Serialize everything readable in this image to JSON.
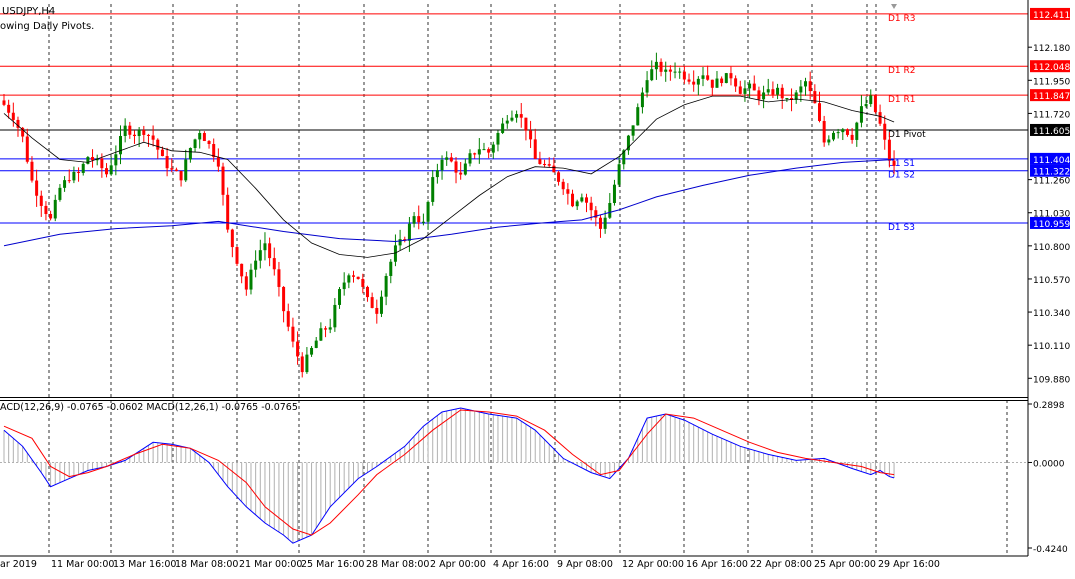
{
  "window": {
    "title": "USDJPY,H4",
    "indicator_note": "owing Daily Pivots."
  },
  "colors": {
    "background": "#ffffff",
    "bull": "#008000",
    "bear": "#ff0000",
    "ma_long": "#0000cc",
    "ma_short": "#000000",
    "macd": "#0000ff",
    "signal": "#ff0000",
    "histogram": "#b0b0b0",
    "resistance": "#ff0000",
    "support": "#0000ff",
    "pivot": "#000000",
    "price_box_red": "#ff0000",
    "price_box_blue": "#0000ff",
    "price_box_black": "#000000"
  },
  "pivots": [
    {
      "label": "D1 R3",
      "value": 112.411,
      "box": "112.411",
      "kind": "resistance"
    },
    {
      "label": "D1 R2",
      "value": 112.048,
      "box": "112.048",
      "kind": "resistance"
    },
    {
      "label": "D1 R1",
      "value": 111.847,
      "box": "111.847",
      "kind": "resistance"
    },
    {
      "label": "D1 Pivot",
      "value": 111.605,
      "box": "111.605",
      "kind": "pivot"
    },
    {
      "label": "D1 S1",
      "value": 111.404,
      "box": "111.404",
      "kind": "support"
    },
    {
      "label": "D1 S2",
      "value": 111.322,
      "box": "111.322",
      "kind": "support"
    },
    {
      "label": "D1 S3",
      "value": 110.959,
      "box": "110.959",
      "kind": "support"
    }
  ],
  "price_axis_ticks": [
    "112.180",
    "111.950",
    "111.720",
    "111.260",
    "111.030",
    "110.800",
    "110.570",
    "110.340",
    "110.110",
    "109.880"
  ],
  "macd": {
    "label": "ACD(12,26,9) -0.0765 -0.0602 MACD(12,26,1) -0.0765 -0.0765",
    "ticks": [
      "0.2898",
      "0.0000",
      "-0.4240"
    ]
  },
  "time_axis": [
    "ar 2019",
    "11 Mar 00:00",
    "13 Mar 16:00",
    "18 Mar 08:00",
    "21 Mar 00:00",
    "25 Mar 16:00",
    "28 Mar 08:00",
    "2 Apr 00:00",
    "4 Apr 16:00",
    "9 Apr 08:00",
    "12 Apr 00:00",
    "16 Apr 16:00",
    "22 Apr 08:00",
    "25 Apr 00:00",
    "29 Apr 16:00"
  ],
  "chart_data": {
    "type": "candlestick",
    "symbol": "USDJPY",
    "timeframe": "H4",
    "ylim": [
      109.75,
      112.48
    ],
    "close_path": [
      [
        0,
        111.78
      ],
      [
        2,
        111.7
      ],
      [
        4,
        111.55
      ],
      [
        6,
        111.25
      ],
      [
        8,
        111.1
      ],
      [
        10,
        110.98
      ],
      [
        12,
        111.2
      ],
      [
        14,
        111.28
      ],
      [
        16,
        111.3
      ],
      [
        18,
        111.42
      ],
      [
        20,
        111.38
      ],
      [
        22,
        111.3
      ],
      [
        24,
        111.45
      ],
      [
        26,
        111.62
      ],
      [
        28,
        111.58
      ],
      [
        30,
        111.6
      ],
      [
        32,
        111.54
      ],
      [
        34,
        111.4
      ],
      [
        36,
        111.32
      ],
      [
        38,
        111.28
      ],
      [
        40,
        111.48
      ],
      [
        42,
        111.6
      ],
      [
        44,
        111.5
      ],
      [
        46,
        111.38
      ],
      [
        48,
        110.9
      ],
      [
        50,
        110.7
      ],
      [
        52,
        110.5
      ],
      [
        54,
        110.72
      ],
      [
        56,
        110.82
      ],
      [
        58,
        110.62
      ],
      [
        60,
        110.35
      ],
      [
        62,
        110.12
      ],
      [
        64,
        109.95
      ],
      [
        66,
        110.08
      ],
      [
        68,
        110.2
      ],
      [
        70,
        110.25
      ],
      [
        72,
        110.48
      ],
      [
        74,
        110.62
      ],
      [
        76,
        110.58
      ],
      [
        78,
        110.42
      ],
      [
        80,
        110.35
      ],
      [
        82,
        110.6
      ],
      [
        84,
        110.78
      ],
      [
        86,
        110.86
      ],
      [
        88,
        111.02
      ],
      [
        90,
        110.95
      ],
      [
        92,
        111.25
      ],
      [
        94,
        111.42
      ],
      [
        96,
        111.38
      ],
      [
        98,
        111.28
      ],
      [
        100,
        111.42
      ],
      [
        102,
        111.48
      ],
      [
        104,
        111.45
      ],
      [
        106,
        111.58
      ],
      [
        108,
        111.7
      ],
      [
        110,
        111.74
      ],
      [
        112,
        111.62
      ],
      [
        114,
        111.4
      ],
      [
        116,
        111.36
      ],
      [
        118,
        111.3
      ],
      [
        120,
        111.22
      ],
      [
        122,
        111.1
      ],
      [
        124,
        111.16
      ],
      [
        126,
        111.05
      ],
      [
        128,
        110.92
      ],
      [
        130,
        111.1
      ],
      [
        132,
        111.35
      ],
      [
        134,
        111.55
      ],
      [
        136,
        111.75
      ],
      [
        138,
        111.98
      ],
      [
        140,
        112.05
      ],
      [
        142,
        112.0
      ],
      [
        144,
        112.03
      ],
      [
        146,
        111.98
      ],
      [
        148,
        111.95
      ],
      [
        150,
        112.0
      ],
      [
        152,
        111.92
      ],
      [
        154,
        111.96
      ],
      [
        156,
        111.98
      ],
      [
        158,
        111.88
      ],
      [
        160,
        111.9
      ],
      [
        162,
        111.84
      ],
      [
        164,
        111.86
      ],
      [
        166,
        111.88
      ],
      [
        168,
        111.8
      ],
      [
        170,
        111.85
      ],
      [
        172,
        111.94
      ],
      [
        174,
        111.78
      ],
      [
        176,
        111.52
      ],
      [
        178,
        111.6
      ],
      [
        180,
        111.62
      ],
      [
        182,
        111.56
      ],
      [
        184,
        111.75
      ],
      [
        186,
        111.82
      ],
      [
        188,
        111.64
      ],
      [
        190,
        111.4
      ],
      [
        191,
        111.34
      ]
    ],
    "ma_long": [
      [
        0,
        110.8
      ],
      [
        12,
        110.88
      ],
      [
        24,
        110.92
      ],
      [
        36,
        110.94
      ],
      [
        46,
        110.97
      ],
      [
        50,
        110.95
      ],
      [
        60,
        110.9
      ],
      [
        72,
        110.85
      ],
      [
        84,
        110.83
      ],
      [
        96,
        110.88
      ],
      [
        106,
        110.93
      ],
      [
        116,
        110.96
      ],
      [
        124,
        110.98
      ],
      [
        132,
        111.05
      ],
      [
        140,
        111.14
      ],
      [
        150,
        111.22
      ],
      [
        160,
        111.29
      ],
      [
        170,
        111.34
      ],
      [
        180,
        111.38
      ],
      [
        191,
        111.4
      ]
    ],
    "ma_short": [
      [
        0,
        111.72
      ],
      [
        6,
        111.55
      ],
      [
        12,
        111.4
      ],
      [
        18,
        111.38
      ],
      [
        24,
        111.45
      ],
      [
        30,
        111.52
      ],
      [
        36,
        111.46
      ],
      [
        42,
        111.45
      ],
      [
        48,
        111.4
      ],
      [
        54,
        111.2
      ],
      [
        60,
        110.98
      ],
      [
        66,
        110.82
      ],
      [
        72,
        110.74
      ],
      [
        78,
        110.72
      ],
      [
        84,
        110.75
      ],
      [
        90,
        110.85
      ],
      [
        96,
        111.0
      ],
      [
        102,
        111.15
      ],
      [
        108,
        111.28
      ],
      [
        114,
        111.35
      ],
      [
        120,
        111.34
      ],
      [
        126,
        111.3
      ],
      [
        132,
        111.42
      ],
      [
        136,
        111.55
      ],
      [
        140,
        111.68
      ],
      [
        146,
        111.78
      ],
      [
        152,
        111.84
      ],
      [
        158,
        111.84
      ],
      [
        164,
        111.8
      ],
      [
        170,
        111.82
      ],
      [
        176,
        111.8
      ],
      [
        182,
        111.74
      ],
      [
        188,
        111.7
      ],
      [
        191,
        111.66
      ]
    ],
    "macd_line": [
      [
        0,
        0.16
      ],
      [
        4,
        0.08
      ],
      [
        8,
        -0.05
      ],
      [
        10,
        -0.12
      ],
      [
        14,
        -0.08
      ],
      [
        18,
        -0.04
      ],
      [
        22,
        -0.02
      ],
      [
        26,
        0.01
      ],
      [
        32,
        0.1
      ],
      [
        36,
        0.09
      ],
      [
        40,
        0.07
      ],
      [
        44,
        0.0
      ],
      [
        48,
        -0.12
      ],
      [
        52,
        -0.22
      ],
      [
        56,
        -0.3
      ],
      [
        60,
        -0.36
      ],
      [
        62,
        -0.4
      ],
      [
        66,
        -0.36
      ],
      [
        70,
        -0.22
      ],
      [
        76,
        -0.08
      ],
      [
        80,
        -0.02
      ],
      [
        86,
        0.08
      ],
      [
        90,
        0.18
      ],
      [
        94,
        0.25
      ],
      [
        98,
        0.27
      ],
      [
        104,
        0.24
      ],
      [
        110,
        0.22
      ],
      [
        114,
        0.16
      ],
      [
        120,
        0.02
      ],
      [
        126,
        -0.05
      ],
      [
        130,
        -0.08
      ],
      [
        134,
        0.02
      ],
      [
        138,
        0.22
      ],
      [
        142,
        0.24
      ],
      [
        146,
        0.21
      ],
      [
        152,
        0.14
      ],
      [
        158,
        0.08
      ],
      [
        164,
        0.04
      ],
      [
        170,
        0.01
      ],
      [
        176,
        0.02
      ],
      [
        182,
        -0.03
      ],
      [
        186,
        -0.06
      ],
      [
        188,
        -0.04
      ],
      [
        190,
        -0.07
      ],
      [
        191,
        -0.0765
      ]
    ],
    "signal_line": [
      [
        0,
        0.18
      ],
      [
        6,
        0.12
      ],
      [
        10,
        -0.02
      ],
      [
        14,
        -0.07
      ],
      [
        18,
        -0.05
      ],
      [
        22,
        -0.02
      ],
      [
        28,
        0.04
      ],
      [
        34,
        0.09
      ],
      [
        40,
        0.07
      ],
      [
        46,
        0.01
      ],
      [
        52,
        -0.1
      ],
      [
        56,
        -0.22
      ],
      [
        62,
        -0.33
      ],
      [
        66,
        -0.36
      ],
      [
        70,
        -0.3
      ],
      [
        76,
        -0.16
      ],
      [
        80,
        -0.06
      ],
      [
        86,
        0.04
      ],
      [
        92,
        0.16
      ],
      [
        98,
        0.26
      ],
      [
        104,
        0.25
      ],
      [
        110,
        0.23
      ],
      [
        116,
        0.16
      ],
      [
        122,
        0.04
      ],
      [
        128,
        -0.06
      ],
      [
        132,
        -0.04
      ],
      [
        138,
        0.14
      ],
      [
        142,
        0.24
      ],
      [
        148,
        0.22
      ],
      [
        154,
        0.16
      ],
      [
        160,
        0.1
      ],
      [
        166,
        0.05
      ],
      [
        172,
        0.02
      ],
      [
        178,
        0.0
      ],
      [
        184,
        -0.02
      ],
      [
        188,
        -0.05
      ],
      [
        191,
        -0.0602
      ]
    ]
  }
}
